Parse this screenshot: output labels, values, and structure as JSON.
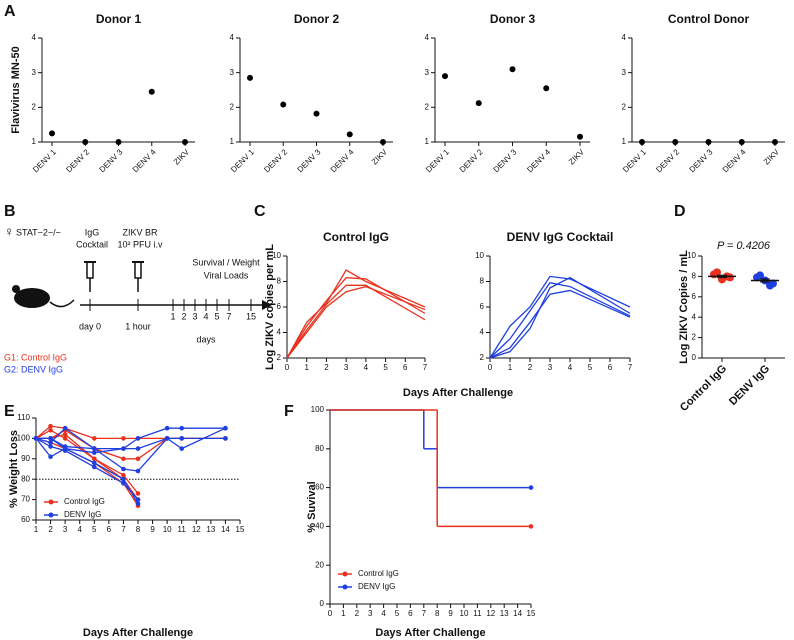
{
  "panel_labels": [
    "A",
    "B",
    "C",
    "D",
    "E",
    "F"
  ],
  "chart_data": [
    {
      "type": "dot",
      "title": "Donor 1",
      "ylabel": "Flavivirus MN-50",
      "categories": [
        "DENV 1",
        "DENV 2",
        "DENV 3",
        "DENV 4",
        "ZIKV"
      ],
      "values": [
        1.25,
        1.0,
        1.0,
        2.45,
        1.0
      ],
      "color": "#000000",
      "ylim": [
        1,
        4
      ],
      "yticks": [
        1,
        2,
        3,
        4
      ]
    },
    {
      "type": "dot",
      "title": "Donor 2",
      "categories": [
        "DENV 1",
        "DENV 2",
        "DENV 3",
        "DENV 4",
        "ZIKV"
      ],
      "values": [
        2.85,
        2.08,
        1.82,
        1.22,
        1.0
      ],
      "color": "#000000",
      "ylim": [
        1,
        4
      ],
      "yticks": [
        1,
        2,
        3,
        4
      ]
    },
    {
      "type": "dot",
      "title": "Donor 3",
      "categories": [
        "DENV 1",
        "DENV 2",
        "DENV 3",
        "DENV 4",
        "ZIKV"
      ],
      "values": [
        2.9,
        2.12,
        3.1,
        2.55,
        1.15
      ],
      "color": "#000000",
      "ylim": [
        1,
        4
      ],
      "yticks": [
        1,
        2,
        3,
        4
      ]
    },
    {
      "type": "dot",
      "title": "Control Donor",
      "categories": [
        "DENV 1",
        "DENV 2",
        "DENV 3",
        "DENV 4",
        "ZIKV"
      ],
      "values": [
        1.0,
        1.0,
        1.0,
        1.0,
        1.0
      ],
      "color": "#000000",
      "ylim": [
        1,
        4
      ],
      "yticks": [
        1,
        2,
        3,
        4
      ]
    },
    {
      "type": "line",
      "title": "Control IgG",
      "ylabel": "Log ZIKV copies per mL",
      "xlabel": "Days After Challenge",
      "x": [
        0,
        1,
        2,
        3,
        4,
        7
      ],
      "xlim": [
        0,
        7
      ],
      "xticks": [
        0,
        1,
        2,
        3,
        4,
        5,
        6,
        7
      ],
      "ylim": [
        2,
        10
      ],
      "yticks": [
        2,
        4,
        6,
        8,
        10
      ],
      "series": [
        {
          "color": "#e8321e",
          "values": [
            2,
            4.8,
            6.3,
            8.9,
            8.0,
            6.0
          ]
        },
        {
          "color": "#e8321e",
          "values": [
            2,
            4.5,
            6.5,
            8.3,
            8.2,
            5.5
          ]
        },
        {
          "color": "#e8321e",
          "values": [
            2,
            4.2,
            6.2,
            7.7,
            7.7,
            5.0
          ]
        },
        {
          "color": "#e8321e",
          "values": [
            2,
            4.0,
            6.0,
            7.2,
            7.6,
            5.8
          ]
        }
      ]
    },
    {
      "type": "line",
      "title": "DENV IgG Cocktail",
      "x": [
        0,
        1,
        2,
        3,
        4,
        7
      ],
      "xlim": [
        0,
        7
      ],
      "xticks": [
        0,
        1,
        2,
        3,
        4,
        5,
        6,
        7
      ],
      "ylim": [
        2,
        10
      ],
      "yticks": [
        2,
        4,
        6,
        8,
        10
      ],
      "series": [
        {
          "color": "#1f3fe0",
          "values": [
            2,
            4.5,
            6.0,
            8.4,
            8.2,
            6.0
          ]
        },
        {
          "color": "#1f3fe0",
          "values": [
            2,
            3.5,
            5.7,
            7.9,
            7.6,
            5.3
          ]
        },
        {
          "color": "#1f3fe0",
          "values": [
            2,
            2.5,
            4.3,
            7.5,
            8.3,
            5.5
          ]
        },
        {
          "color": "#1f3fe0",
          "values": [
            2,
            2.8,
            4.8,
            7.0,
            7.3,
            5.2
          ]
        }
      ]
    },
    {
      "type": "dot",
      "annotation": "P = 0.4206",
      "ylabel": "Log ZIKV Copies / mL",
      "categories": [
        "Control IgG",
        "DENV IgG"
      ],
      "points": [
        [
          8.2,
          7.9,
          7.7,
          8.3,
          8.1
        ],
        [
          7.9,
          7.3,
          7.6,
          8.0,
          7.2
        ]
      ],
      "colors": [
        "#e8321e",
        "#1f3fe0"
      ],
      "mean": [
        8.0,
        7.6
      ],
      "sem": [
        0.12,
        0.15
      ],
      "ylim": [
        0,
        10
      ],
      "yticks": [
        0,
        2,
        4,
        6,
        8,
        10
      ]
    },
    {
      "type": "line",
      "ylabel": "% Weight Loss",
      "xlabel": "Days After Challenge",
      "x": [
        1,
        2,
        3,
        5,
        7,
        8,
        10,
        11,
        14
      ],
      "xlim": [
        1,
        15
      ],
      "xticks": [
        1,
        2,
        3,
        4,
        5,
        6,
        7,
        8,
        9,
        10,
        11,
        12,
        13,
        14,
        15
      ],
      "ylim": [
        60,
        110
      ],
      "yticks": [
        60,
        70,
        80,
        90,
        100,
        110
      ],
      "hline": 80,
      "legend": "lower left",
      "groups": [
        {
          "name": "Control IgG",
          "color": "#e8321e",
          "lines": [
            [
              100,
              106,
              105,
              100,
              100,
              100,
              100,
              100,
              100
            ],
            [
              100,
              100,
              104,
              95,
              90,
              90,
              100,
              100,
              100
            ],
            [
              100,
              104,
              100,
              90,
              82,
              73,
              null,
              null,
              null
            ],
            [
              100,
              100,
              102,
              90,
              80,
              70,
              null,
              null,
              null
            ],
            [
              100,
              98,
              95,
              88,
              78,
              67,
              null,
              null,
              null
            ]
          ]
        },
        {
          "name": "DENV IgG",
          "color": "#1f3fe0",
          "lines": [
            [
              100,
              91,
              95,
              93,
              95,
              100,
              105,
              105,
              105
            ],
            [
              100,
              98,
              105,
              95,
              85,
              84,
              100,
              95,
              105
            ],
            [
              100,
              100,
              96,
              95,
              95,
              95,
              100,
              100,
              100
            ],
            [
              100,
              96,
              94,
              86,
              78,
              70,
              null,
              null,
              null
            ],
            [
              100,
              100,
              95,
              88,
              80,
              68,
              null,
              null,
              null
            ]
          ]
        }
      ]
    },
    {
      "type": "step",
      "ylabel": "% Suvival",
      "xlabel": "Days After Challenge",
      "x": [
        0,
        7,
        8,
        15
      ],
      "xlim": [
        0,
        15
      ],
      "xticks": [
        0,
        1,
        2,
        3,
        4,
        5,
        6,
        7,
        8,
        9,
        10,
        11,
        12,
        13,
        14,
        15
      ],
      "ylim": [
        0,
        100
      ],
      "yticks": [
        0,
        20,
        40,
        60,
        80,
        100
      ],
      "legend": "lower left",
      "series": [
        {
          "name": "Control IgG",
          "color": "#e8321e",
          "values": [
            100,
            100,
            40,
            40
          ]
        },
        {
          "name": "DENV IgG",
          "color": "#1f3fe0",
          "values": [
            100,
            80,
            60,
            60
          ]
        }
      ]
    }
  ],
  "diagram": {
    "sex": "♀",
    "strain": "STAT−2−/−",
    "step1": [
      "IgG",
      "Cocktail"
    ],
    "step2": [
      "ZIKV BR",
      "10² PFU i.v"
    ],
    "readout": [
      "Survival / Weight",
      "Viral Loads"
    ],
    "day0": "day 0",
    "hour": "1 hour",
    "days": [
      1,
      2,
      3,
      4,
      5,
      7,
      15
    ],
    "days_label": "days",
    "groups": [
      "G1: Control IgG",
      "G2: DENV IgG"
    ]
  }
}
